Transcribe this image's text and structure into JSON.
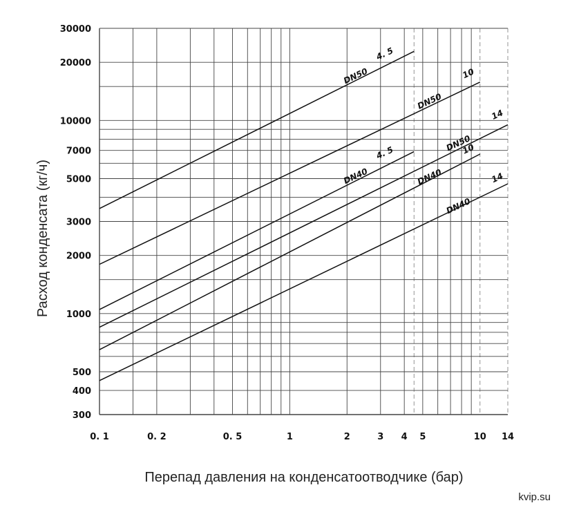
{
  "chart_data": {
    "type": "line",
    "xscale": "log",
    "yscale": "log",
    "xlim": [
      0.1,
      14
    ],
    "ylim": [
      300,
      30000
    ],
    "xlabel": "Перепад давления на конденсатоотводчике (бар)",
    "ylabel": "Расход конденсата (кг/ч)",
    "grid": true,
    "x_ticks": [
      {
        "v": 0.1,
        "label": "0. 1"
      },
      {
        "v": 0.2,
        "label": "0. 2"
      },
      {
        "v": 0.5,
        "label": "0. 5"
      },
      {
        "v": 1,
        "label": "1"
      },
      {
        "v": 2,
        "label": "2"
      },
      {
        "v": 3,
        "label": "3"
      },
      {
        "v": 4,
        "label": "4"
      },
      {
        "v": 5,
        "label": "5"
      },
      {
        "v": 10,
        "label": "10"
      },
      {
        "v": 14,
        "label": "14"
      }
    ],
    "y_ticks": [
      {
        "v": 300,
        "label": "300"
      },
      {
        "v": 400,
        "label": "400"
      },
      {
        "v": 500,
        "label": "500"
      },
      {
        "v": 1000,
        "label": "1000"
      },
      {
        "v": 2000,
        "label": "2000"
      },
      {
        "v": 3000,
        "label": "3000"
      },
      {
        "v": 5000,
        "label": "5000"
      },
      {
        "v": 7000,
        "label": "7000"
      },
      {
        "v": 10000,
        "label": "10000"
      },
      {
        "v": 20000,
        "label": "20000"
      },
      {
        "v": 30000,
        "label": "30000"
      }
    ],
    "x_grid": [
      0.1,
      0.15,
      0.2,
      0.3,
      0.4,
      0.5,
      0.6,
      0.7,
      0.8,
      0.9,
      1,
      2,
      3,
      4,
      5,
      6,
      7,
      8,
      9,
      10,
      14
    ],
    "x_grid_dashed": [
      4.5,
      10,
      14
    ],
    "y_grid": [
      300,
      400,
      500,
      600,
      700,
      800,
      900,
      1000,
      1500,
      2000,
      3000,
      4000,
      5000,
      6000,
      7000,
      8000,
      9000,
      10000,
      15000,
      20000,
      30000
    ],
    "series": [
      {
        "name": "DN50",
        "pressure": "4.5",
        "x": [
          0.1,
          4.5
        ],
        "y": [
          3500,
          22800
        ]
      },
      {
        "name": "DN50",
        "pressure": "10",
        "x": [
          0.1,
          10
        ],
        "y": [
          1800,
          15800
        ]
      },
      {
        "name": "DN50",
        "pressure": "14",
        "x": [
          0.1,
          14
        ],
        "y": [
          850,
          9500
        ]
      },
      {
        "name": "DN40",
        "pressure": "4.5",
        "x": [
          0.1,
          4.5
        ],
        "y": [
          1050,
          6900
        ]
      },
      {
        "name": "DN40",
        "pressure": "10",
        "x": [
          0.1,
          10
        ],
        "y": [
          650,
          6700
        ]
      },
      {
        "name": "DN40",
        "pressure": "14",
        "x": [
          0.1,
          14
        ],
        "y": [
          450,
          4700
        ]
      }
    ],
    "annotations": [
      {
        "text": "DN50",
        "x": 2.25,
        "y": 16500,
        "angle": -25
      },
      {
        "text": "4. 5",
        "x": 3.2,
        "y": 21500,
        "angle": -25
      },
      {
        "text": "DN50",
        "x": 5.5,
        "y": 12200,
        "angle": -25
      },
      {
        "text": "10",
        "x": 8.8,
        "y": 17000,
        "angle": -25
      },
      {
        "text": "DN50",
        "x": 7.8,
        "y": 7400,
        "angle": -25
      },
      {
        "text": "14",
        "x": 12.5,
        "y": 10400,
        "angle": -25
      },
      {
        "text": "DN40",
        "x": 2.25,
        "y": 5000,
        "angle": -25
      },
      {
        "text": "4. 5",
        "x": 3.2,
        "y": 6600,
        "angle": -25
      },
      {
        "text": "DN40",
        "x": 5.5,
        "y": 4950,
        "angle": -25
      },
      {
        "text": "10",
        "x": 8.8,
        "y": 6900,
        "angle": -25
      },
      {
        "text": "DN40",
        "x": 7.8,
        "y": 3500,
        "angle": -25
      },
      {
        "text": "14",
        "x": 12.5,
        "y": 4900,
        "angle": -25
      }
    ]
  },
  "watermark": "kvip.su"
}
